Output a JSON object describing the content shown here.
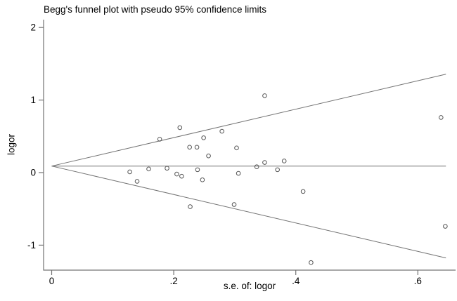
{
  "chart_data": {
    "type": "scatter",
    "title": "Begg's funnel plot with pseudo 95% confidence limits",
    "xlabel": "s.e. of: logor",
    "ylabel": "logor",
    "xlim": [
      0,
      0.66
    ],
    "ylim": [
      -1.34,
      2.11
    ],
    "grid": false,
    "legend": "none",
    "x_ticks": {
      "values": [
        0,
        0.2,
        0.4,
        0.6
      ],
      "labels": [
        "0",
        ".2",
        ".4",
        ".6"
      ]
    },
    "y_ticks": {
      "values": [
        2,
        1,
        0,
        -1
      ],
      "labels": [
        "2",
        "1",
        "0",
        "-1"
      ]
    },
    "series": [
      {
        "name": "studies",
        "marker": "hollow-circle",
        "points": [
          {
            "se": 0.21,
            "logor": 0.62
          },
          {
            "se": 0.279,
            "logor": 0.57
          },
          {
            "se": 0.177,
            "logor": 0.46
          },
          {
            "se": 0.249,
            "logor": 0.48
          },
          {
            "se": 0.226,
            "logor": 0.35
          },
          {
            "se": 0.238,
            "logor": 0.35
          },
          {
            "se": 0.303,
            "logor": 0.34
          },
          {
            "se": 0.257,
            "logor": 0.23
          },
          {
            "se": 0.349,
            "logor": 1.06
          },
          {
            "se": 0.159,
            "logor": 0.05
          },
          {
            "se": 0.189,
            "logor": 0.06
          },
          {
            "se": 0.128,
            "logor": 0.01
          },
          {
            "se": 0.205,
            "logor": -0.02
          },
          {
            "se": 0.213,
            "logor": -0.05
          },
          {
            "se": 0.239,
            "logor": 0.04
          },
          {
            "se": 0.306,
            "logor": -0.01
          },
          {
            "se": 0.247,
            "logor": -0.1
          },
          {
            "se": 0.14,
            "logor": -0.12
          },
          {
            "se": 0.336,
            "logor": 0.08
          },
          {
            "se": 0.349,
            "logor": 0.14
          },
          {
            "se": 0.381,
            "logor": 0.16
          },
          {
            "se": 0.37,
            "logor": 0.04
          },
          {
            "se": 0.412,
            "logor": -0.26
          },
          {
            "se": 0.227,
            "logor": -0.47
          },
          {
            "se": 0.299,
            "logor": -0.44
          },
          {
            "se": 0.638,
            "logor": 0.76
          },
          {
            "se": 0.645,
            "logor": -0.74
          },
          {
            "se": 0.425,
            "logor": -1.24
          }
        ]
      }
    ],
    "funnel": {
      "pooled_logor": 0.09,
      "z": 1.96,
      "se_start": 0,
      "se_end": 0.646,
      "upper_limit_at_end": 1.36,
      "lower_limit_at_end": -1.18
    },
    "colors": {
      "background": "#ffffff",
      "axis": "#737373",
      "funnel_line": "#737373",
      "marker": "#545454",
      "text": "#000000"
    }
  }
}
